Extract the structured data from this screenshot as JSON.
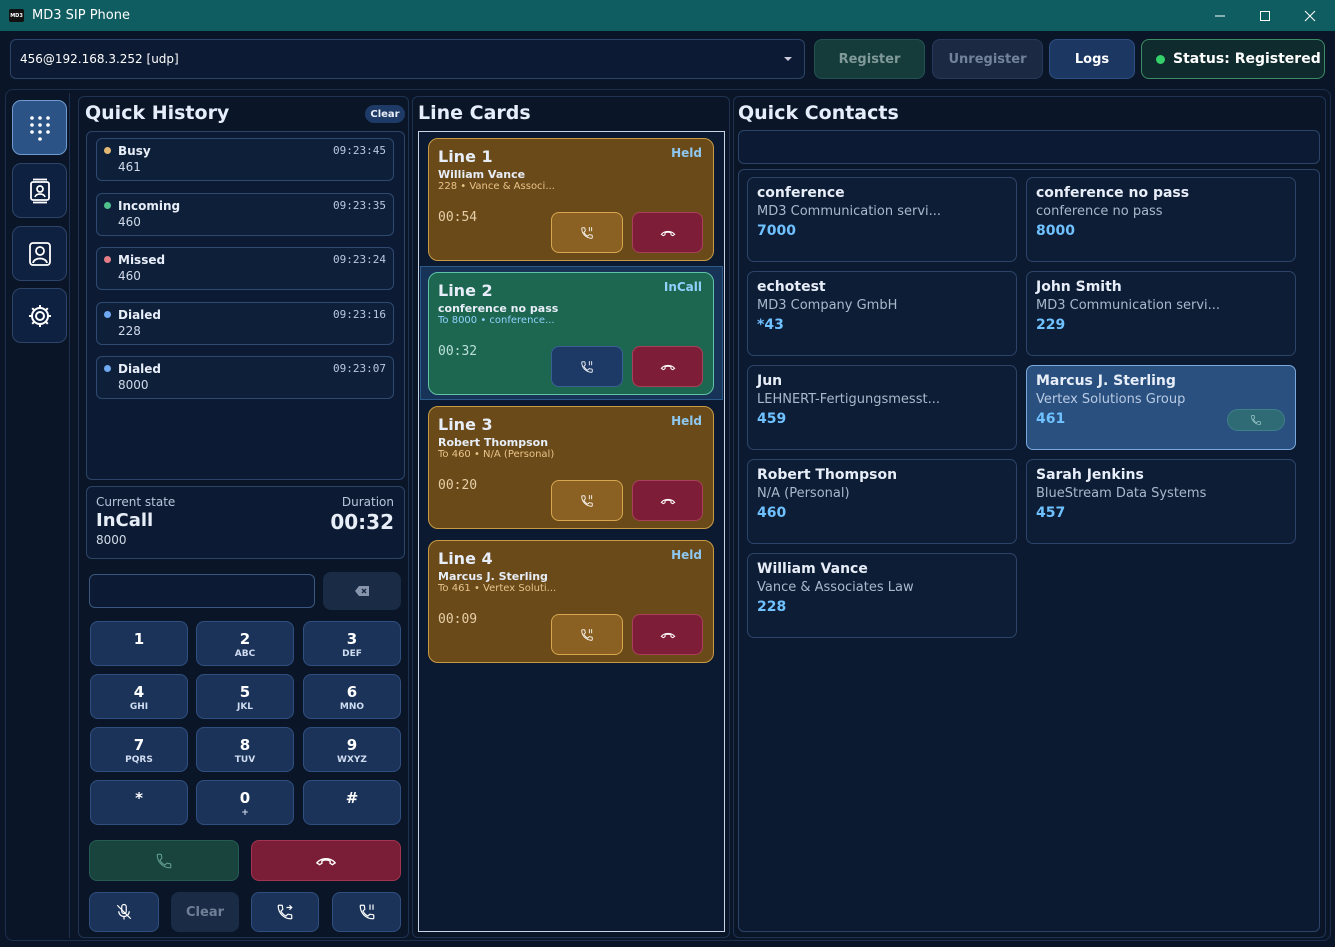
{
  "window": {
    "icon": "MD3",
    "title": "MD3 SIP Phone"
  },
  "toolbar": {
    "account": "456@192.168.3.252 [udp]",
    "register": "Register",
    "unregister": "Unregister",
    "logs": "Logs",
    "status": "Status: Registered"
  },
  "history": {
    "title": "Quick History",
    "clear": "Clear",
    "items": [
      {
        "state": "Busy",
        "number": "461",
        "time": "09:23:45",
        "color": "#e3b875"
      },
      {
        "state": "Incoming",
        "number": "460",
        "time": "09:23:35",
        "color": "#4fc18d"
      },
      {
        "state": "Missed",
        "number": "460",
        "time": "09:23:24",
        "color": "#e57d86"
      },
      {
        "state": "Dialed",
        "number": "228",
        "time": "09:23:16",
        "color": "#6ea9f2"
      },
      {
        "state": "Dialed",
        "number": "8000",
        "time": "09:23:07",
        "color": "#6ea9f2"
      }
    ]
  },
  "current": {
    "state_label": "Current state",
    "state": "InCall",
    "number": "8000",
    "duration_label": "Duration",
    "duration": "00:32"
  },
  "keypad": {
    "keys": [
      {
        "digit": "1"
      },
      {
        "digit": "2",
        "letters": "ABC"
      },
      {
        "digit": "3",
        "letters": "DEF"
      },
      {
        "digit": "4",
        "letters": "GHI"
      },
      {
        "digit": "5",
        "letters": "JKL"
      },
      {
        "digit": "6",
        "letters": "MNO"
      },
      {
        "digit": "7",
        "letters": "PQRS"
      },
      {
        "digit": "8",
        "letters": "TUV"
      },
      {
        "digit": "9",
        "letters": "WXYZ"
      },
      {
        "digit": "*"
      },
      {
        "digit": "0",
        "letters": "+"
      },
      {
        "digit": "#"
      }
    ],
    "clear": "Clear"
  },
  "lines": {
    "title": "Line Cards",
    "cards": [
      {
        "name": "Line 1",
        "status": "Held",
        "contact": "William Vance",
        "detail": "228 • Vance & Associ...",
        "timer": "00:54"
      },
      {
        "name": "Line 2",
        "status": "InCall",
        "contact": "conference no pass",
        "detail": "To 8000 • conference...",
        "timer": "00:32",
        "selected": true
      },
      {
        "name": "Line 3",
        "status": "Held",
        "contact": "Robert Thompson",
        "detail": "To 460 • N/A (Personal)",
        "timer": "00:20"
      },
      {
        "name": "Line 4",
        "status": "Held",
        "contact": "Marcus J. Sterling",
        "detail": "To 461 • Vertex Soluti...",
        "timer": "00:09"
      }
    ]
  },
  "contacts": {
    "title": "Quick Contacts",
    "items": [
      {
        "name": "conference",
        "org": "MD3 Communication servi...",
        "number": "7000"
      },
      {
        "name": "conference no pass",
        "org": "conference no pass",
        "number": "8000"
      },
      {
        "name": "echotest",
        "org": "MD3 Company GmbH",
        "number": "*43"
      },
      {
        "name": "John Smith",
        "org": "MD3 Communication servi...",
        "number": "229"
      },
      {
        "name": "Jun",
        "org": "LEHNERT-Fertigungsmesst...",
        "number": "459"
      },
      {
        "name": "Marcus J. Sterling",
        "org": "Vertex Solutions Group",
        "number": "461",
        "selected": true
      },
      {
        "name": "Robert Thompson",
        "org": "N/A (Personal)",
        "number": "460"
      },
      {
        "name": "Sarah Jenkins",
        "org": "BlueStream Data Systems",
        "number": "457"
      },
      {
        "name": "William Vance",
        "org": "Vance & Associates Law",
        "number": "228"
      }
    ]
  }
}
